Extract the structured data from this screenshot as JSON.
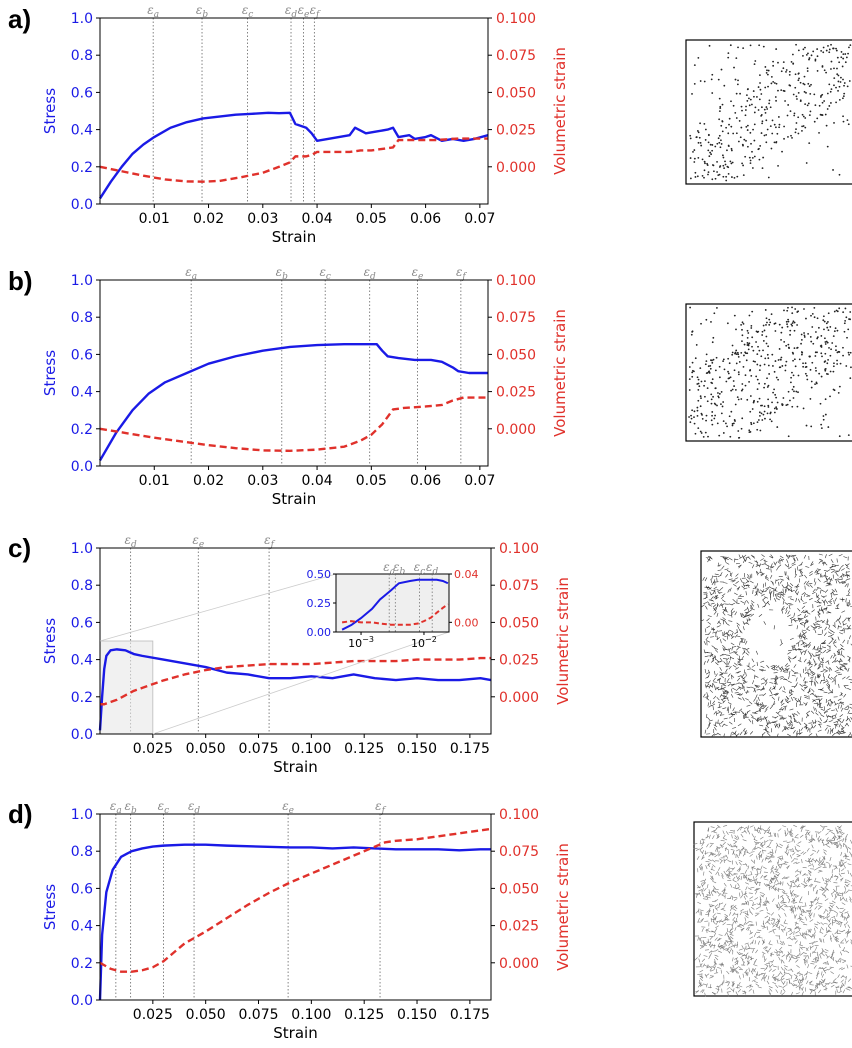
{
  "chart_data": [
    {
      "panel": "a)",
      "type": "line",
      "xlabel": "Strain",
      "ylabel_left": "Stress",
      "ylabel_right": "Volumetric strain",
      "xlim": [
        0,
        0.0715
      ],
      "ylim_left": [
        0,
        1.0
      ],
      "ylim_right": [
        -0.025,
        0.1
      ],
      "xticks": [
        "0.01",
        "0.02",
        "0.03",
        "0.04",
        "0.05",
        "0.06",
        "0.07"
      ],
      "yticks_left": [
        "0.0",
        "0.2",
        "0.4",
        "0.6",
        "0.8",
        "1.0"
      ],
      "yticks_right": [
        "0.000",
        "0.025",
        "0.050",
        "0.075",
        "0.100"
      ],
      "markers": [
        {
          "label": "a",
          "x": 0.0098
        },
        {
          "label": "b",
          "x": 0.0188
        },
        {
          "label": "c",
          "x": 0.0272
        },
        {
          "label": "d",
          "x": 0.0352
        },
        {
          "label": "e",
          "x": 0.0375
        },
        {
          "label": "f",
          "x": 0.0395
        }
      ],
      "series": [
        {
          "name": "Stress",
          "axis": "left",
          "color": "#1a1ae6",
          "style": "solid",
          "x": [
            0,
            0.002,
            0.004,
            0.006,
            0.008,
            0.01,
            0.013,
            0.016,
            0.019,
            0.022,
            0.025,
            0.028,
            0.031,
            0.033,
            0.035,
            0.036,
            0.038,
            0.039,
            0.04,
            0.042,
            0.044,
            0.046,
            0.047,
            0.049,
            0.051,
            0.053,
            0.054,
            0.055,
            0.057,
            0.058,
            0.06,
            0.061,
            0.063,
            0.065,
            0.067,
            0.069,
            0.0715
          ],
          "y": [
            0.03,
            0.12,
            0.2,
            0.27,
            0.32,
            0.36,
            0.41,
            0.44,
            0.46,
            0.47,
            0.48,
            0.485,
            0.49,
            0.488,
            0.49,
            0.43,
            0.41,
            0.38,
            0.34,
            0.35,
            0.36,
            0.37,
            0.41,
            0.38,
            0.39,
            0.4,
            0.41,
            0.36,
            0.37,
            0.35,
            0.36,
            0.37,
            0.34,
            0.35,
            0.34,
            0.35,
            0.37
          ]
        },
        {
          "name": "Volumetric strain",
          "axis": "right",
          "color": "#e0312b",
          "style": "dashed",
          "x": [
            0,
            0.004,
            0.008,
            0.012,
            0.016,
            0.019,
            0.022,
            0.026,
            0.03,
            0.033,
            0.035,
            0.036,
            0.038,
            0.039,
            0.04,
            0.044,
            0.046,
            0.048,
            0.05,
            0.052,
            0.054,
            0.055,
            0.058,
            0.062,
            0.066,
            0.07,
            0.0715
          ],
          "y": [
            0.0,
            -0.003,
            -0.006,
            -0.0085,
            -0.0098,
            -0.01,
            -0.0095,
            -0.007,
            -0.004,
            0.0,
            0.003,
            0.007,
            0.007,
            0.008,
            0.01,
            0.01,
            0.01,
            0.011,
            0.011,
            0.012,
            0.013,
            0.018,
            0.018,
            0.018,
            0.019,
            0.019,
            0.019
          ]
        }
      ]
    },
    {
      "panel": "b)",
      "type": "line",
      "xlabel": "Strain",
      "ylabel_left": "Stress",
      "ylabel_right": "Volumetric strain",
      "xlim": [
        0,
        0.0715
      ],
      "ylim_left": [
        0,
        1.0
      ],
      "ylim_right": [
        -0.025,
        0.1
      ],
      "xticks": [
        "0.01",
        "0.02",
        "0.03",
        "0.04",
        "0.05",
        "0.06",
        "0.07"
      ],
      "yticks_left": [
        "0.0",
        "0.2",
        "0.4",
        "0.6",
        "0.8",
        "1.0"
      ],
      "yticks_right": [
        "0.000",
        "0.025",
        "0.050",
        "0.075",
        "0.100"
      ],
      "markers": [
        {
          "label": "a",
          "x": 0.0168
        },
        {
          "label": "b",
          "x": 0.0335
        },
        {
          "label": "c",
          "x": 0.0415
        },
        {
          "label": "d",
          "x": 0.0497
        },
        {
          "label": "e",
          "x": 0.0585
        },
        {
          "label": "f",
          "x": 0.0665
        }
      ],
      "series": [
        {
          "name": "Stress",
          "axis": "left",
          "color": "#1a1ae6",
          "style": "solid",
          "x": [
            0,
            0.003,
            0.006,
            0.009,
            0.012,
            0.016,
            0.02,
            0.025,
            0.03,
            0.035,
            0.04,
            0.045,
            0.049,
            0.051,
            0.052,
            0.053,
            0.055,
            0.058,
            0.061,
            0.063,
            0.065,
            0.066,
            0.068,
            0.0715
          ],
          "y": [
            0.03,
            0.18,
            0.3,
            0.39,
            0.45,
            0.5,
            0.55,
            0.59,
            0.62,
            0.64,
            0.65,
            0.655,
            0.655,
            0.655,
            0.62,
            0.59,
            0.58,
            0.57,
            0.57,
            0.56,
            0.53,
            0.51,
            0.5,
            0.5
          ]
        },
        {
          "name": "Volumetric strain",
          "axis": "right",
          "color": "#e0312b",
          "style": "dashed",
          "x": [
            0,
            0.005,
            0.01,
            0.015,
            0.02,
            0.025,
            0.03,
            0.035,
            0.04,
            0.045,
            0.048,
            0.05,
            0.052,
            0.053,
            0.054,
            0.056,
            0.06,
            0.063,
            0.065,
            0.067,
            0.0715
          ],
          "y": [
            0.0,
            -0.003,
            -0.006,
            -0.0085,
            -0.011,
            -0.013,
            -0.0145,
            -0.0148,
            -0.014,
            -0.012,
            -0.008,
            -0.004,
            0.003,
            0.008,
            0.013,
            0.014,
            0.015,
            0.016,
            0.019,
            0.021,
            0.021
          ]
        }
      ]
    },
    {
      "panel": "c)",
      "type": "line",
      "xlabel": "Strain",
      "ylabel_left": "Stress",
      "ylabel_right": "Volumetric strain",
      "xlim": [
        0,
        0.185
      ],
      "ylim_left": [
        0,
        1.0
      ],
      "ylim_right": [
        -0.025,
        0.1
      ],
      "xticks": [
        "0.025",
        "0.050",
        "0.075",
        "0.100",
        "0.125",
        "0.150",
        "0.175"
      ],
      "yticks_left": [
        "0.0",
        "0.2",
        "0.4",
        "0.6",
        "0.8",
        "1.0"
      ],
      "yticks_right": [
        "0.000",
        "0.025",
        "0.050",
        "0.075",
        "0.100"
      ],
      "markers": [
        {
          "label": "d",
          "x": 0.0145
        },
        {
          "label": "e",
          "x": 0.0465
        },
        {
          "label": "f",
          "x": 0.08
        }
      ],
      "series": [
        {
          "name": "Stress",
          "axis": "left",
          "color": "#1a1ae6",
          "style": "solid",
          "x": [
            0,
            0.001,
            0.002,
            0.003,
            0.005,
            0.008,
            0.012,
            0.016,
            0.02,
            0.03,
            0.04,
            0.05,
            0.06,
            0.07,
            0.08,
            0.09,
            0.1,
            0.11,
            0.12,
            0.13,
            0.14,
            0.15,
            0.16,
            0.17,
            0.18,
            0.185
          ],
          "y": [
            0.02,
            0.2,
            0.35,
            0.42,
            0.45,
            0.455,
            0.45,
            0.43,
            0.42,
            0.4,
            0.38,
            0.36,
            0.33,
            0.32,
            0.3,
            0.3,
            0.31,
            0.3,
            0.32,
            0.3,
            0.29,
            0.3,
            0.29,
            0.29,
            0.3,
            0.29
          ]
        },
        {
          "name": "Volumetric strain",
          "axis": "right",
          "color": "#e0312b",
          "style": "dashed",
          "x": [
            0,
            0.002,
            0.004,
            0.008,
            0.012,
            0.016,
            0.02,
            0.03,
            0.04,
            0.05,
            0.06,
            0.07,
            0.08,
            0.09,
            0.1,
            0.11,
            0.12,
            0.13,
            0.14,
            0.15,
            0.16,
            0.17,
            0.18,
            0.185
          ],
          "y": [
            -0.005,
            -0.005,
            -0.004,
            -0.002,
            0.001,
            0.004,
            0.006,
            0.011,
            0.015,
            0.018,
            0.02,
            0.021,
            0.022,
            0.022,
            0.022,
            0.023,
            0.024,
            0.024,
            0.024,
            0.025,
            0.025,
            0.025,
            0.026,
            0.026
          ]
        }
      ],
      "inset": {
        "xticks": [
          "10^-3",
          "10^-2"
        ],
        "yticks_left": [
          "0.00",
          "0.25",
          "0.50"
        ],
        "yticks_right": [
          "0.00",
          "0.04"
        ],
        "markers": [
          {
            "label": "a",
            "x": 0.0028
          },
          {
            "label": "b",
            "x": 0.0035
          },
          {
            "label": "c",
            "x": 0.0085
          },
          {
            "label": "d",
            "x": 0.0135
          }
        ],
        "series": [
          {
            "name": "Stress",
            "axis": "left",
            "x": [
              0.0005,
              0.0007,
              0.001,
              0.0015,
              0.002,
              0.003,
              0.004,
              0.006,
              0.008,
              0.01,
              0.013,
              0.016,
              0.02,
              0.024
            ],
            "y": [
              0.02,
              0.06,
              0.12,
              0.2,
              0.28,
              0.36,
              0.42,
              0.44,
              0.45,
              0.45,
              0.45,
              0.45,
              0.44,
              0.42
            ]
          },
          {
            "name": "Volumetric strain",
            "axis": "right",
            "x": [
              0.0005,
              0.0007,
              0.001,
              0.0015,
              0.002,
              0.003,
              0.004,
              0.006,
              0.008,
              0.01,
              0.013,
              0.016,
              0.02,
              0.024
            ],
            "y": [
              0.0,
              0.001,
              0.0,
              0.0,
              -0.001,
              -0.002,
              -0.002,
              -0.002,
              -0.001,
              0.001,
              0.004,
              0.008,
              0.012,
              0.015
            ]
          }
        ]
      }
    },
    {
      "panel": "d)",
      "type": "line",
      "xlabel": "Strain",
      "ylabel_left": "Stress",
      "ylabel_right": "Volumetric strain",
      "xlim": [
        0,
        0.185
      ],
      "ylim_left": [
        0,
        1.0
      ],
      "ylim_right": [
        -0.025,
        0.1
      ],
      "xticks": [
        "0.025",
        "0.050",
        "0.075",
        "0.100",
        "0.125",
        "0.150",
        "0.175"
      ],
      "yticks_left": [
        "0.0",
        "0.2",
        "0.4",
        "0.6",
        "0.8",
        "1.0"
      ],
      "yticks_right": [
        "0.000",
        "0.025",
        "0.050",
        "0.075",
        "0.100"
      ],
      "markers": [
        {
          "label": "a",
          "x": 0.0075
        },
        {
          "label": "b",
          "x": 0.0145
        },
        {
          "label": "c",
          "x": 0.03
        },
        {
          "label": "d",
          "x": 0.0445
        },
        {
          "label": "e",
          "x": 0.089
        },
        {
          "label": "f",
          "x": 0.1325
        }
      ],
      "series": [
        {
          "name": "Stress",
          "axis": "left",
          "color": "#1a1ae6",
          "style": "solid",
          "x": [
            0,
            0.001,
            0.003,
            0.006,
            0.01,
            0.015,
            0.02,
            0.025,
            0.03,
            0.04,
            0.05,
            0.06,
            0.075,
            0.09,
            0.1,
            0.11,
            0.12,
            0.13,
            0.14,
            0.15,
            0.16,
            0.17,
            0.18,
            0.185
          ],
          "y": [
            0.0,
            0.35,
            0.58,
            0.7,
            0.77,
            0.8,
            0.815,
            0.825,
            0.83,
            0.835,
            0.835,
            0.83,
            0.825,
            0.82,
            0.82,
            0.815,
            0.82,
            0.815,
            0.81,
            0.81,
            0.81,
            0.805,
            0.81,
            0.81
          ]
        },
        {
          "name": "Volumetric strain",
          "axis": "right",
          "color": "#e0312b",
          "style": "dashed",
          "x": [
            0,
            0.005,
            0.01,
            0.015,
            0.02,
            0.025,
            0.03,
            0.035,
            0.04,
            0.05,
            0.06,
            0.07,
            0.08,
            0.09,
            0.1,
            0.11,
            0.12,
            0.13,
            0.135,
            0.14,
            0.15,
            0.16,
            0.17,
            0.18,
            0.185
          ],
          "y": [
            0.0,
            -0.004,
            -0.006,
            -0.006,
            -0.005,
            -0.003,
            0.001,
            0.007,
            0.013,
            0.021,
            0.03,
            0.039,
            0.047,
            0.054,
            0.06,
            0.066,
            0.072,
            0.078,
            0.081,
            0.082,
            0.083,
            0.085,
            0.087,
            0.089,
            0.09
          ]
        }
      ]
    }
  ]
}
